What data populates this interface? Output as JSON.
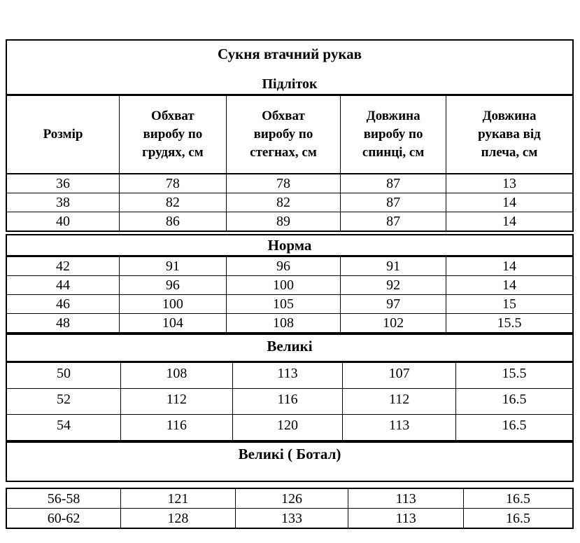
{
  "page": {
    "background_color": "#ffffff",
    "text_color": "#000000",
    "border_color": "#000000"
  },
  "table": {
    "title": "Сукня втачний рукав",
    "columns": [
      "Розмір",
      "Обхват\nвиробу по\nгрудях, см",
      "Обхват\nвиробу по\nстегнах, см",
      "Довжина\nвиробу по\nспинці, см",
      "Довжина\nрукава від\nплеча, см"
    ],
    "sections": [
      {
        "label": "Підліток",
        "rows": [
          [
            "36",
            "78",
            "78",
            "87",
            "13"
          ],
          [
            "38",
            "82",
            "82",
            "87",
            "14"
          ],
          [
            "40",
            "86",
            "89",
            "87",
            "14"
          ]
        ]
      },
      {
        "label": "Норма",
        "rows": [
          [
            "42",
            "91",
            "96",
            "91",
            "14"
          ],
          [
            "44",
            "96",
            "100",
            "92",
            "14"
          ],
          [
            "46",
            "100",
            "105",
            "97",
            "15"
          ],
          [
            "48",
            "104",
            "108",
            "102",
            "15.5"
          ]
        ]
      },
      {
        "label": "Великі",
        "rows": [
          [
            "50",
            "108",
            "113",
            "107",
            "15.5"
          ],
          [
            "52",
            "112",
            "116",
            "112",
            "16.5"
          ],
          [
            "54",
            "116",
            "120",
            "113",
            "16.5"
          ]
        ]
      },
      {
        "label": "Великі ( Ботал)",
        "rows": [
          [
            "56-58",
            "121",
            "126",
            "113",
            "16.5"
          ],
          [
            "60-62",
            "128",
            "133",
            "113",
            "16.5"
          ]
        ]
      }
    ]
  }
}
